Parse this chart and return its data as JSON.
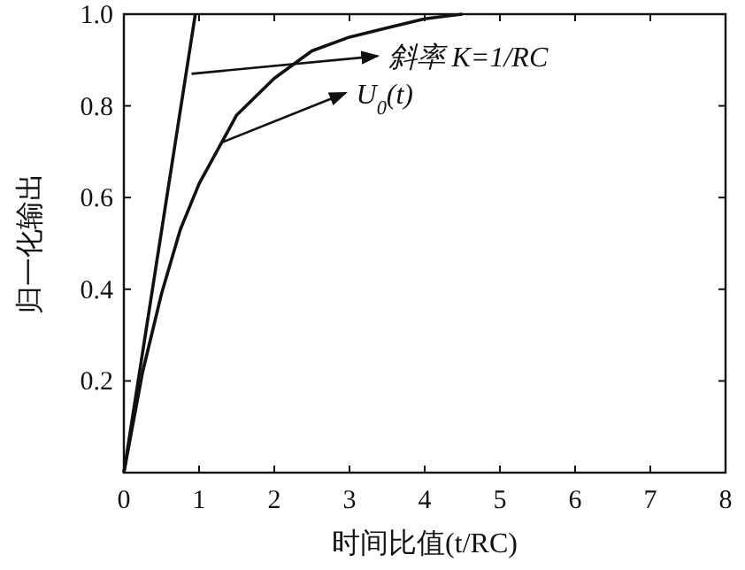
{
  "chart_data": {
    "type": "line",
    "xlabel": "时间比值(t/RC)",
    "ylabel": "归一化输出",
    "xlim": [
      0,
      8
    ],
    "ylim": [
      0,
      1
    ],
    "xticks": [
      0,
      1,
      2,
      3,
      4,
      5,
      6,
      7,
      8
    ],
    "yticks": [
      {
        "value": 0.2,
        "label": "0.2"
      },
      {
        "value": 0.4,
        "label": "0.4"
      },
      {
        "value": 0.6,
        "label": "0.6"
      },
      {
        "value": 0.8,
        "label": "0.8"
      },
      {
        "value": 1,
        "label": "1.0"
      }
    ],
    "grid": false,
    "marker": "none",
    "line_style": "solid",
    "series": [
      {
        "color": "#111111",
        "x": [
          0,
          0.95
        ],
        "values": [
          0,
          1
        ]
      },
      {
        "color": "#111111",
        "x": [
          0,
          0.25,
          0.5,
          0.75,
          1,
          1.5,
          2,
          2.5,
          3,
          3.5,
          4,
          4.5
        ],
        "values": [
          0,
          0.22,
          0.39,
          0.53,
          0.63,
          0.78,
          0.86,
          0.92,
          0.95,
          0.97,
          0.99,
          1
        ]
      }
    ],
    "annotations": [
      {
        "text": "斜率 K=1/RC",
        "x": 0.9,
        "y": 0.87
      },
      {
        "text": "U$_{0}$(t)",
        "x": 1.3,
        "y": 0.72
      }
    ]
  }
}
